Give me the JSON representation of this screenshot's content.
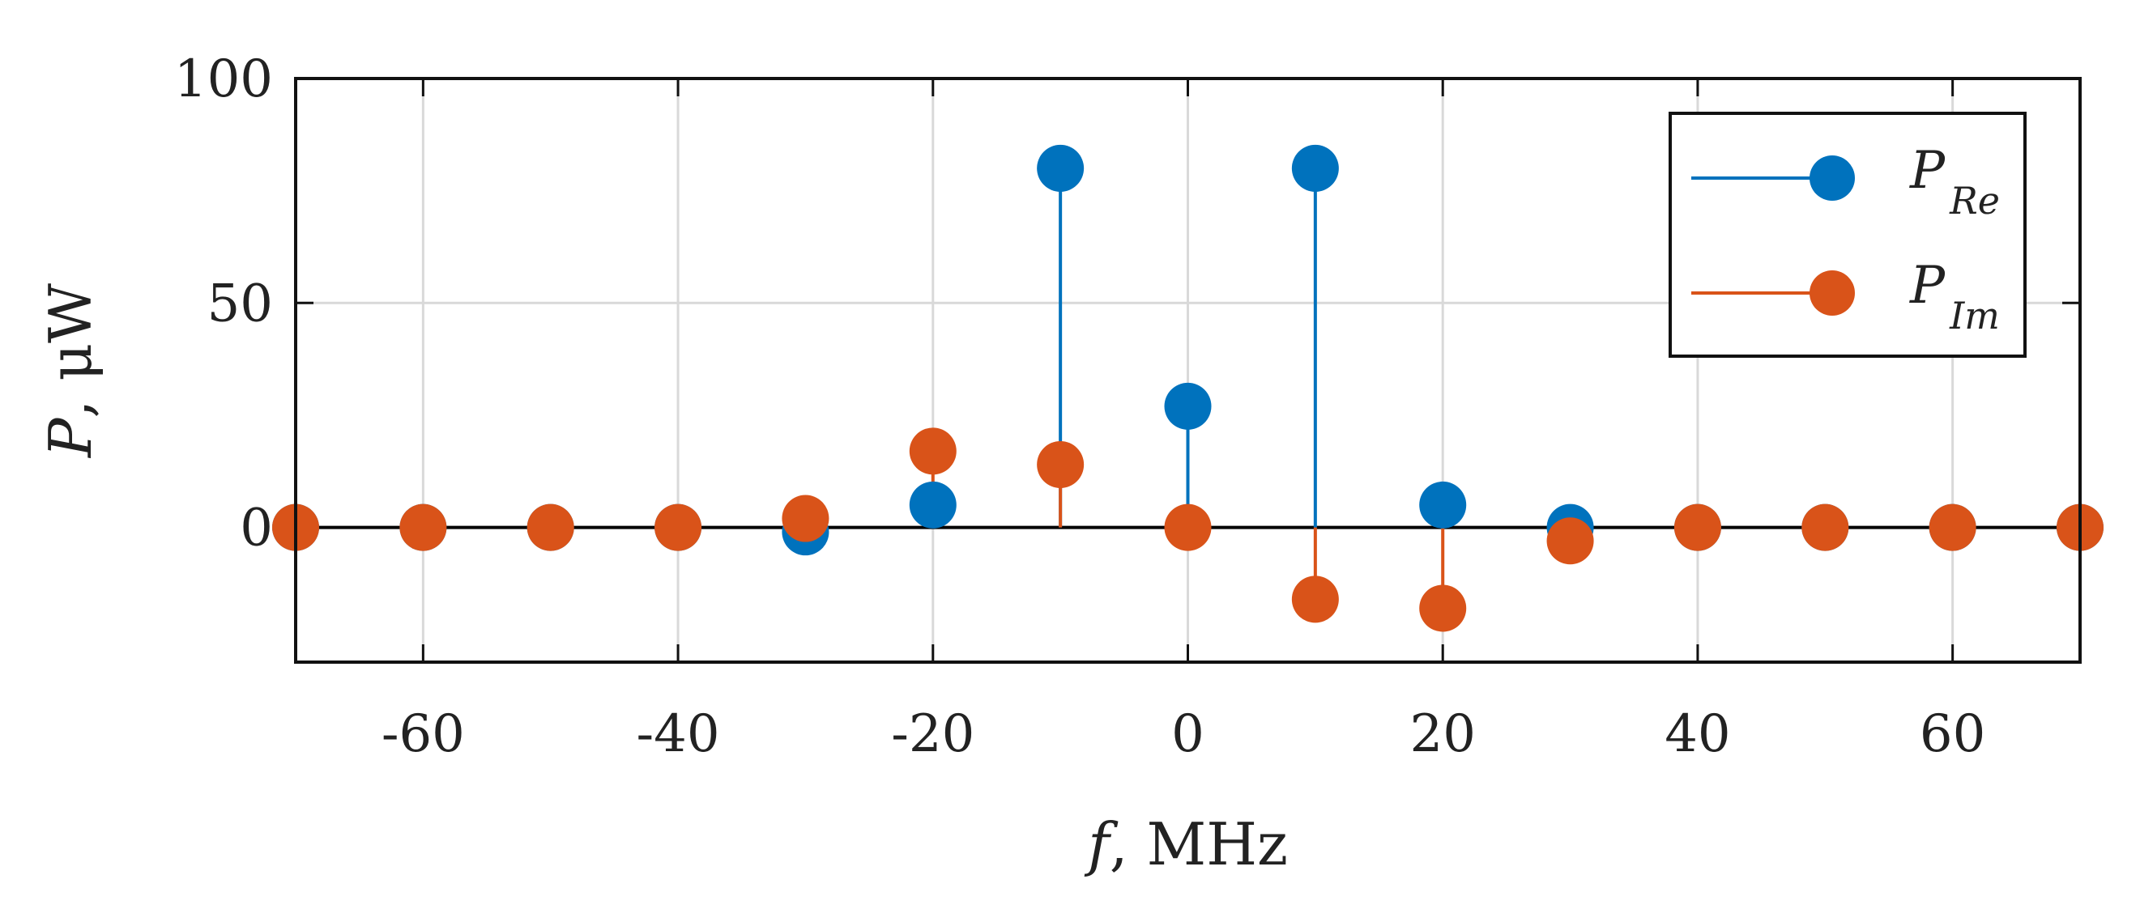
{
  "chart_data": {
    "type": "stem",
    "title": "",
    "xlabel": {
      "var": "f",
      "unit": ", MHz"
    },
    "ylabel": {
      "var": "P",
      "unit": ", μW"
    },
    "xlim": [
      -70,
      70
    ],
    "ylim": [
      -30,
      100
    ],
    "xticks": [
      -60,
      -40,
      -20,
      0,
      20,
      40,
      60
    ],
    "yticks": [
      0,
      50,
      100
    ],
    "grid": true,
    "legend_position": "top-right",
    "series": [
      {
        "name": "P_Re",
        "label_main": "P",
        "label_sub": "Re",
        "color": "#0072BD",
        "x": [
          -70,
          -60,
          -50,
          -40,
          -30,
          -20,
          -10,
          0,
          10,
          20,
          30,
          40,
          50,
          60,
          70
        ],
        "y": [
          0,
          0,
          0,
          0,
          -1,
          5,
          80,
          27,
          80,
          5,
          0,
          0,
          0,
          0,
          0
        ]
      },
      {
        "name": "P_Im",
        "label_main": "P",
        "label_sub": "Im",
        "color": "#D95319",
        "x": [
          -70,
          -60,
          -50,
          -40,
          -30,
          -20,
          -10,
          0,
          10,
          20,
          30,
          40,
          50,
          60,
          70
        ],
        "y": [
          0,
          0,
          0,
          0,
          2,
          17,
          14,
          0,
          -16,
          -18,
          -3,
          0,
          0,
          0,
          0
        ]
      }
    ]
  }
}
